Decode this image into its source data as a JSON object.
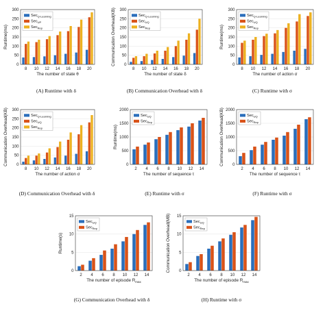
{
  "colors": {
    "s1": "#2a6ebb",
    "s2": "#d95319",
    "s3": "#edb120"
  },
  "chart_data": [
    {
      "type": "bar",
      "grid": true,
      "legend": "top-left",
      "caption": "(A)  Runtime with δ",
      "xlabel": "The number of state θ",
      "ylabel": "Runtime(ms)",
      "categories": [
        "8",
        "10",
        "12",
        "14",
        "16",
        "18",
        "20"
      ],
      "ylim": [
        0,
        300
      ],
      "yticks": [
        0,
        50,
        100,
        150,
        200,
        250,
        300
      ],
      "series": [
        {
          "name": "Sec",
          "sub": "Q-Learning",
          "color": "s1",
          "values": [
            38,
            40,
            44,
            50,
            58,
            65,
            80
          ]
        },
        {
          "name": "Sec",
          "sub": "UP",
          "color": "s2",
          "values": [
            112,
            122,
            138,
            160,
            182,
            205,
            258
          ]
        },
        {
          "name": "Sec",
          "sub": "Rep",
          "color": "s3",
          "values": [
            125,
            135,
            155,
            180,
            210,
            245,
            285
          ]
        }
      ]
    },
    {
      "type": "bar",
      "grid": true,
      "legend": "top-left",
      "caption": "(B)  Communication Overhead with δ",
      "xlabel": "The number of state δ",
      "ylabel": "Communication Overhead(KB)",
      "categories": [
        "8",
        "10",
        "12",
        "14",
        "16",
        "18",
        "20"
      ],
      "ylim": [
        0,
        300
      ],
      "yticks": [
        0,
        50,
        100,
        150,
        200,
        250,
        300
      ],
      "series": [
        {
          "name": "Sec",
          "sub": "Q-Learning",
          "color": "s1",
          "values": [
            14,
            18,
            24,
            30,
            40,
            48,
            62
          ]
        },
        {
          "name": "Sec",
          "sub": "UQ",
          "color": "s2",
          "values": [
            36,
            45,
            60,
            75,
            100,
            135,
            190
          ]
        },
        {
          "name": "Sec",
          "sub": "Rep",
          "color": "s3",
          "values": [
            45,
            58,
            75,
            95,
            130,
            170,
            250
          ]
        }
      ]
    },
    {
      "type": "bar",
      "grid": true,
      "legend": "top-left",
      "caption": "(C)  Runtime with σ",
      "xlabel": "The number of action σ",
      "ylabel": "Runtime(ms)",
      "categories": [
        "8",
        "10",
        "12",
        "14",
        "16",
        "18",
        "20"
      ],
      "ylim": [
        0,
        300
      ],
      "yticks": [
        0,
        50,
        100,
        150,
        200,
        250,
        300
      ],
      "series": [
        {
          "name": "Sec",
          "sub": "Q-Learning",
          "color": "s1",
          "values": [
            38,
            45,
            52,
            58,
            68,
            75,
            85
          ]
        },
        {
          "name": "Sec",
          "sub": "UQ",
          "color": "s2",
          "values": [
            118,
            135,
            155,
            170,
            200,
            235,
            265
          ]
        },
        {
          "name": "Sec",
          "sub": "Rep",
          "color": "s3",
          "values": [
            130,
            150,
            168,
            188,
            225,
            275,
            285
          ]
        }
      ]
    },
    {
      "type": "bar",
      "grid": true,
      "legend": "top-left",
      "caption": "(D)  Communication Overhead with δ",
      "xlabel": "The number of action σ",
      "ylabel": "Communication Overhead(KB)",
      "categories": [
        "8",
        "10",
        "12",
        "14",
        "16",
        "18",
        "20"
      ],
      "ylim": [
        0,
        300
      ],
      "yticks": [
        0,
        50,
        100,
        150,
        200,
        250,
        300
      ],
      "series": [
        {
          "name": "Sec",
          "sub": "Q-Learning",
          "color": "s1",
          "values": [
            15,
            22,
            30,
            38,
            48,
            58,
            72
          ]
        },
        {
          "name": "Sec",
          "sub": "UQ",
          "color": "s2",
          "values": [
            35,
            48,
            65,
            95,
            135,
            165,
            230
          ]
        },
        {
          "name": "Sec",
          "sub": "Rep",
          "color": "s3",
          "values": [
            48,
            60,
            88,
            125,
            175,
            215,
            270
          ]
        }
      ]
    },
    {
      "type": "bar",
      "grid": true,
      "legend": "top-left",
      "caption": "(E)  Runtime with σ",
      "xlabel": "The number of sequence τ",
      "ylabel": "Runtime(ms)",
      "categories": [
        "2",
        "4",
        "6",
        "8",
        "10",
        "12",
        "14"
      ],
      "ylim": [
        0,
        2000
      ],
      "yticks": [
        0,
        500,
        1000,
        1500,
        2000
      ],
      "series": [
        {
          "name": "Sec",
          "sub": "UQ",
          "color": "s1",
          "values": [
            550,
            720,
            920,
            1080,
            1250,
            1380,
            1600
          ]
        },
        {
          "name": "Sec",
          "sub": "Rep",
          "color": "s2",
          "values": [
            650,
            800,
            1000,
            1180,
            1350,
            1500,
            1700
          ]
        }
      ]
    },
    {
      "type": "bar",
      "grid": true,
      "legend": "top-left",
      "caption": "(F)  Runtime with σ",
      "xlabel": "The number of sequence τ",
      "ylabel": "Communication Overhead(KB)",
      "categories": [
        "2",
        "4",
        "6",
        "8",
        "10",
        "12",
        "14"
      ],
      "ylim": [
        0,
        2000
      ],
      "yticks": [
        0,
        500,
        1000,
        1500,
        2000
      ],
      "series": [
        {
          "name": "Sec",
          "sub": "UQ",
          "color": "s1",
          "values": [
            300,
            520,
            720,
            900,
            1050,
            1300,
            1650
          ]
        },
        {
          "name": "Sec",
          "sub": "Rep",
          "color": "s2",
          "values": [
            420,
            650,
            820,
            980,
            1180,
            1450,
            1720
          ]
        }
      ]
    },
    {
      "type": "bar",
      "grid": true,
      "legend": "top-left",
      "caption": "(G)  Communication Overhead with δ",
      "xlabel": "The number of episode R",
      "xlabel_sub": "max",
      "ylabel": "Runtime(s)",
      "categories": [
        "2",
        "4",
        "6",
        "8",
        "10",
        "12",
        "14"
      ],
      "ylim": [
        0,
        15
      ],
      "yticks": [
        0,
        5,
        10,
        15
      ],
      "series": [
        {
          "name": "Sec",
          "sub": "UQ",
          "color": "s1",
          "values": [
            1.2,
            2.7,
            4.3,
            6.0,
            8.0,
            10.0,
            12.5
          ]
        },
        {
          "name": "Sec",
          "sub": "Rep",
          "color": "s2",
          "values": [
            1.6,
            3.4,
            5.5,
            7.2,
            9.2,
            11.1,
            13.2
          ]
        }
      ]
    },
    {
      "type": "bar",
      "grid": true,
      "legend": "top-left",
      "caption": "(H)  Runtime with σ",
      "xlabel": "The number of episode R",
      "xlabel_sub": "max",
      "ylabel": "Communication Overhead(MB)",
      "categories": [
        "2",
        "4",
        "6",
        "8",
        "10",
        "12",
        "14"
      ],
      "ylim": [
        0,
        15
      ],
      "yticks": [
        0,
        5,
        10,
        15
      ],
      "series": [
        {
          "name": "Sec",
          "sub": "UQ",
          "color": "s1",
          "values": [
            1.8,
            4.0,
            6.0,
            8.0,
            9.8,
            11.8,
            13.8
          ]
        },
        {
          "name": "Sec",
          "sub": "Rep",
          "color": "s2",
          "values": [
            2.3,
            4.5,
            6.8,
            8.8,
            10.5,
            12.5,
            14.7
          ]
        }
      ]
    }
  ]
}
